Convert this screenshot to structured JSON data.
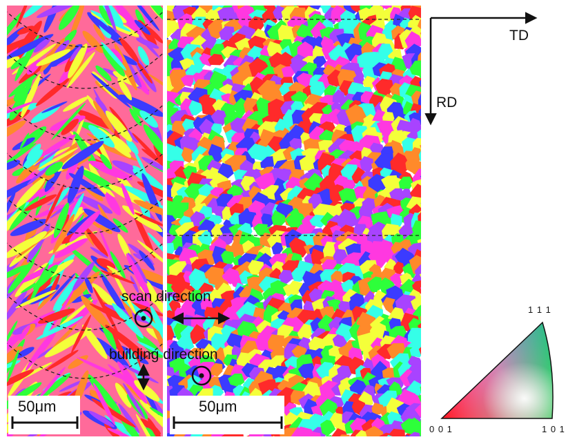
{
  "annotations": {
    "scan_direction": "scan direction",
    "building_direction": "building direction"
  },
  "scale_bars": {
    "left": "50μm",
    "right": "50μm"
  },
  "axes": {
    "td": "TD",
    "rd": "RD"
  },
  "ipf_key": {
    "corner_111": "1 1 1",
    "corner_001": "0 0 1",
    "corner_101": "1 0 1"
  },
  "colors": {
    "red": "#ff2a2a",
    "green": "#2dff3a",
    "blue": "#3b3bff",
    "magenta": "#ff38e0",
    "orange": "#ff8a2a",
    "cyan": "#35ffe8",
    "yellow": "#f4ff3a",
    "purple": "#a843ff"
  }
}
